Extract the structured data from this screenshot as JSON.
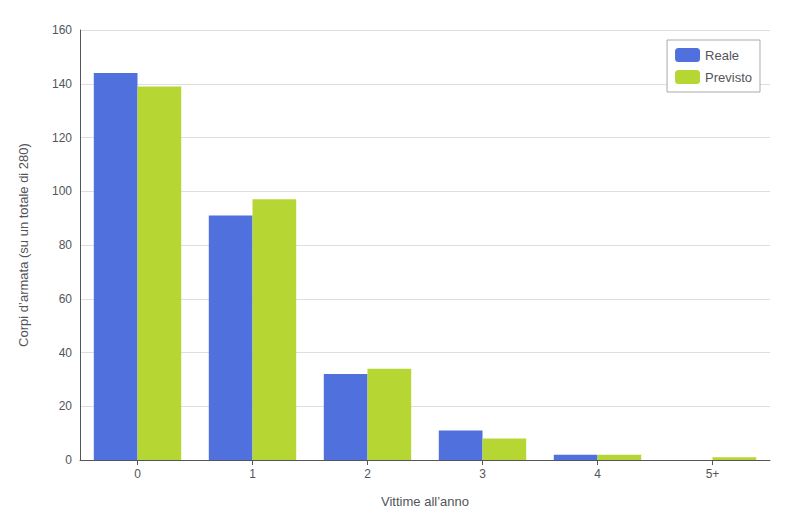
{
  "chart_data": {
    "type": "bar",
    "xlabel": "Vittime all’anno",
    "ylabel": "Corpi d’armata (su un totale di 280)",
    "categories": [
      "0",
      "1",
      "2",
      "3",
      "4",
      "5+"
    ],
    "series": [
      {
        "name": "Reale",
        "values": [
          144,
          91,
          32,
          11,
          2,
          0
        ]
      },
      {
        "name": "Previsto",
        "values": [
          139,
          97,
          34,
          8,
          2,
          1
        ]
      }
    ],
    "ylim": [
      0,
      160
    ],
    "yticks": [
      0,
      20,
      40,
      60,
      80,
      100,
      120,
      140,
      160
    ],
    "grid": true,
    "legend": "upper right"
  }
}
